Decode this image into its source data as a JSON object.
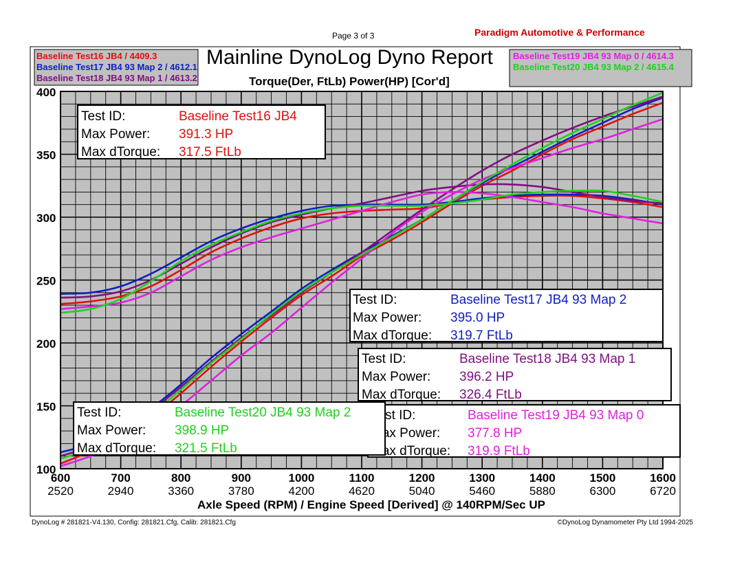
{
  "header": {
    "page_label": "Page 3 of 3",
    "company": "Paradigm Automotive & Performance",
    "title": "Mainline DynoLog Dyno Report",
    "subtitle": "Torque(Der, FtLb) Power(HP) [Cor'd]"
  },
  "footer": {
    "left": "DynoLog # 281821-V4.130, Config: 281821.Cfg, Calib: 281821.Cfg",
    "right": "©DynoLog Dynamometer Pty Ltd 1994-2025"
  },
  "colors": {
    "plot_bg": "#c0c0c0",
    "grid": "#000000",
    "company": "#cc0000"
  },
  "legend_left": [
    {
      "text": "Baseline Test16 JB4 / 4409.3",
      "color": "#e01010"
    },
    {
      "text": "Baseline Test17 JB4 93 Map 2 / 4612.1",
      "color": "#1020c0"
    },
    {
      "text": "Baseline Test18 JB4 93 Map 1 / 4613.2",
      "color": "#801080"
    }
  ],
  "legend_right": [
    {
      "text": "Baseline Test19 JB4 93 Map 0 / 4614.3",
      "color": "#e020e0"
    },
    {
      "text": "Baseline Test20 JB4 93 Map 2 / 4615.4",
      "color": "#20d020"
    }
  ],
  "info_labels": {
    "test_id": "Test ID:",
    "max_power": "Max Power:",
    "max_dtorque": "Max dTorque:"
  },
  "info_boxes": [
    {
      "name": "Baseline Test16 JB4",
      "power": "391.3 HP",
      "torque": "317.5 FtLb",
      "color": "#e01010"
    },
    {
      "name": "Baseline Test17 JB4 93 Map 2",
      "power": "395.0 HP",
      "torque": "319.7 FtLb",
      "color": "#1020c0"
    },
    {
      "name": "Baseline Test18 JB4 93 Map 1",
      "power": "396.2 HP",
      "torque": "326.4 FtLb",
      "color": "#801080"
    },
    {
      "name": "Baseline Test19 JB4 93 Map 0",
      "power": "377.8 HP",
      "torque": "319.9 FtLb",
      "color": "#e020e0"
    },
    {
      "name": "Baseline Test20 JB4 93 Map 2",
      "power": "398.9 HP",
      "torque": "321.5 FtLb",
      "color": "#20d020"
    }
  ],
  "chart_data": {
    "type": "line",
    "title": "Mainline DynoLog Dyno Report",
    "subtitle": "Torque(Der, FtLb) Power(HP) [Cor'd]",
    "xlabel": "Axle Speed (RPM) / Engine Speed [Derived] @ 140RPM/Sec UP",
    "ylabel": "",
    "xlim": [
      600,
      1600
    ],
    "ylim": [
      100,
      400
    ],
    "x_ticks": [
      "600",
      "700",
      "800",
      "900",
      "1000",
      "1100",
      "1200",
      "1300",
      "1400",
      "1500",
      "1600"
    ],
    "x_ticks_secondary": [
      "2520",
      "2940",
      "3360",
      "3780",
      "4200",
      "4620",
      "5040",
      "5460",
      "5880",
      "6300",
      "6720"
    ],
    "y_ticks": [
      "100",
      "150",
      "200",
      "250",
      "300",
      "350",
      "400"
    ],
    "grid": true,
    "series": [
      {
        "name": "Baseline Test16 JB4 Torque",
        "color": "#e01010",
        "x": [
          600,
          650,
          700,
          750,
          800,
          850,
          900,
          950,
          1000,
          1050,
          1100,
          1150,
          1200,
          1250,
          1300,
          1350,
          1400,
          1450,
          1500,
          1550,
          1600
        ],
        "y": [
          231,
          233,
          237,
          245,
          258,
          272,
          283,
          292,
          299,
          303,
          305,
          306,
          307,
          311,
          314,
          316,
          317,
          317,
          315,
          312,
          308
        ]
      },
      {
        "name": "Baseline Test16 JB4 Power",
        "color": "#e01010",
        "x": [
          600,
          650,
          700,
          750,
          800,
          850,
          900,
          950,
          1000,
          1050,
          1100,
          1150,
          1200,
          1250,
          1300,
          1350,
          1400,
          1450,
          1500,
          1550,
          1600
        ],
        "y": [
          104,
          114,
          127,
          141,
          160,
          181,
          201,
          220,
          238,
          253,
          269,
          282,
          296,
          311,
          325,
          337,
          350,
          362,
          372,
          382,
          391
        ]
      },
      {
        "name": "Baseline Test17 JB4 93 Map 2 Torque",
        "color": "#1020c0",
        "x": [
          600,
          650,
          700,
          750,
          800,
          850,
          900,
          950,
          1000,
          1050,
          1100,
          1150,
          1200,
          1250,
          1300,
          1350,
          1400,
          1450,
          1500,
          1550,
          1600
        ],
        "y": [
          239,
          240,
          245,
          255,
          268,
          281,
          291,
          299,
          305,
          309,
          310,
          310,
          310,
          312,
          315,
          317,
          318,
          318,
          317,
          314,
          310
        ]
      },
      {
        "name": "Baseline Test17 JB4 93 Map 2 Power",
        "color": "#1020c0",
        "x": [
          600,
          650,
          700,
          750,
          800,
          850,
          900,
          950,
          1000,
          1050,
          1100,
          1150,
          1200,
          1250,
          1300,
          1350,
          1400,
          1450,
          1500,
          1550,
          1600
        ],
        "y": [
          113,
          120,
          134,
          148,
          167,
          188,
          207,
          225,
          243,
          258,
          272,
          285,
          298,
          313,
          327,
          340,
          352,
          364,
          375,
          386,
          395
        ]
      },
      {
        "name": "Baseline Test18 JB4 93 Map 1 Torque",
        "color": "#801080",
        "x": [
          600,
          650,
          700,
          750,
          800,
          850,
          900,
          950,
          1000,
          1050,
          1100,
          1150,
          1200,
          1250,
          1300,
          1350,
          1400,
          1450,
          1500,
          1550,
          1600
        ],
        "y": [
          236,
          237,
          241,
          250,
          263,
          276,
          287,
          296,
          302,
          307,
          311,
          316,
          321,
          324,
          326,
          326,
          324,
          320,
          316,
          313,
          311
        ]
      },
      {
        "name": "Baseline Test18 JB4 93 Map 1 Power",
        "color": "#801080",
        "x": [
          600,
          650,
          700,
          750,
          800,
          850,
          900,
          950,
          1000,
          1050,
          1100,
          1150,
          1200,
          1250,
          1300,
          1350,
          1400,
          1450,
          1500,
          1550,
          1600
        ],
        "y": [
          110,
          118,
          131,
          146,
          165,
          185,
          204,
          222,
          240,
          256,
          272,
          289,
          306,
          322,
          337,
          350,
          361,
          371,
          380,
          388,
          396
        ]
      },
      {
        "name": "Baseline Test19 JB4 93 Map 0 Torque",
        "color": "#e020e0",
        "x": [
          600,
          650,
          700,
          750,
          800,
          850,
          900,
          950,
          1000,
          1050,
          1100,
          1150,
          1200,
          1250,
          1300,
          1350,
          1400,
          1450,
          1500,
          1550,
          1600
        ],
        "y": [
          227,
          229,
          232,
          240,
          253,
          266,
          276,
          284,
          291,
          298,
          305,
          312,
          318,
          320,
          319,
          316,
          312,
          308,
          303,
          299,
          295
        ]
      },
      {
        "name": "Baseline Test19 JB4 93 Map 0 Power",
        "color": "#e020e0",
        "x": [
          600,
          650,
          700,
          750,
          800,
          850,
          900,
          950,
          1000,
          1050,
          1100,
          1150,
          1200,
          1250,
          1300,
          1350,
          1400,
          1450,
          1500,
          1550,
          1600
        ],
        "y": [
          102,
          110,
          120,
          132,
          150,
          170,
          190,
          208,
          228,
          248,
          267,
          287,
          304,
          318,
          330,
          339,
          347,
          355,
          362,
          370,
          378
        ]
      },
      {
        "name": "Baseline Test20 JB4 93 Map 2 Torque",
        "color": "#20d020",
        "x": [
          600,
          650,
          700,
          750,
          800,
          850,
          900,
          950,
          1000,
          1050,
          1100,
          1150,
          1200,
          1250,
          1300,
          1350,
          1400,
          1450,
          1500,
          1550,
          1600
        ],
        "y": [
          224,
          227,
          235,
          249,
          265,
          278,
          288,
          297,
          303,
          307,
          309,
          309,
          309,
          311,
          314,
          318,
          320,
          321,
          321,
          317,
          312
        ]
      },
      {
        "name": "Baseline Test20 JB4 93 Map 2 Power",
        "color": "#20d020",
        "x": [
          600,
          650,
          700,
          750,
          800,
          850,
          900,
          950,
          1000,
          1050,
          1100,
          1150,
          1200,
          1250,
          1300,
          1350,
          1400,
          1450,
          1500,
          1550,
          1600
        ],
        "y": [
          108,
          116,
          129,
          143,
          163,
          184,
          203,
          223,
          241,
          256,
          270,
          284,
          298,
          313,
          328,
          342,
          355,
          367,
          378,
          389,
          399
        ]
      }
    ]
  }
}
